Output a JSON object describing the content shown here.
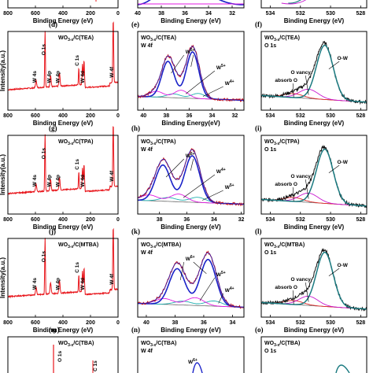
{
  "chart_data": [
    {
      "id": "c",
      "type": "line",
      "letter": "",
      "title": "",
      "sub": "",
      "ticks": [
        534,
        532,
        530,
        528
      ],
      "xlabel": "",
      "ylabel": "",
      "annotations": []
    },
    {
      "id": "d",
      "type": "line",
      "letter": "(d)",
      "title": "WO",
      "title_sub": "3-x",
      "title_rest": "/C(TEA)",
      "sub": "",
      "ticks": [
        800,
        600,
        400,
        200,
        0
      ],
      "xlabel": "Binding Energy (eV)",
      "ylabel": "Intensity(a.u.)",
      "peaks": [
        {
          "label": "O 1s",
          "x": 530
        },
        {
          "label": "W 4s",
          "x": 595
        },
        {
          "label": "W 4p",
          "x": 425
        },
        {
          "label": "W 4p",
          "x": 490
        },
        {
          "label": "C 1s",
          "x": 285
        },
        {
          "label": "W 4d",
          "x": 247
        },
        {
          "label": "W 4f",
          "x": 35
        }
      ]
    },
    {
      "id": "e",
      "type": "line",
      "letter": "(e)",
      "title": "WO",
      "title_sub": "3-x",
      "title_rest": "/C(TEA)",
      "sub": "W 4f",
      "ticks": [
        40,
        38,
        36,
        34,
        32
      ],
      "xlabel": "Binding Energy(eV)",
      "ylabel": "",
      "annotations": [
        "W",
        "6+",
        "W",
        "5+",
        "W",
        "4+"
      ]
    },
    {
      "id": "f",
      "type": "line",
      "letter": "(f)",
      "title": "WO",
      "title_sub": "3-x",
      "title_rest": "/C(TEA)",
      "sub": "O 1s",
      "ticks": [
        534,
        532,
        530,
        528
      ],
      "xlabel": "Binding Energy (eV)",
      "ylabel": "",
      "annotations": [
        "O-W",
        "O vancy",
        "absorb O"
      ]
    },
    {
      "id": "g",
      "type": "line",
      "letter": "(g)",
      "title": "WO",
      "title_sub": "3-x",
      "title_rest": "/C(TPA)",
      "sub": "",
      "ticks": [
        800,
        600,
        400,
        200,
        0
      ],
      "xlabel": "Binding Energy (eV)",
      "ylabel": "Intensity(a.u.)",
      "peaks": [
        {
          "label": "O 1s",
          "x": 530
        },
        {
          "label": "W 4s",
          "x": 595
        },
        {
          "label": "W 4p",
          "x": 425
        },
        {
          "label": "W 4p",
          "x": 490
        },
        {
          "label": "C 1s",
          "x": 285
        },
        {
          "label": "W 4d",
          "x": 247
        },
        {
          "label": "W 4f",
          "x": 35
        }
      ]
    },
    {
      "id": "h",
      "type": "line",
      "letter": "(h)",
      "title": "WO",
      "title_sub": "3-x",
      "title_rest": "/C(TPA)",
      "sub": "W 4f",
      "ticks": [
        38,
        36,
        34,
        32
      ],
      "xlabel": "Binding Energy (eV)",
      "ylabel": "",
      "annotations": [
        "W",
        "6+",
        "W",
        "4+",
        "W",
        "5+"
      ]
    },
    {
      "id": "i",
      "type": "line",
      "letter": "(i)",
      "title": "WO",
      "title_sub": "3-x",
      "title_rest": "/C(TPA)",
      "sub": "O 1s",
      "ticks": [
        534,
        532,
        530,
        528
      ],
      "xlabel": "Binding Energy (eV)",
      "ylabel": "",
      "annotations": [
        "O-W",
        "O vancy",
        "absorb O"
      ]
    },
    {
      "id": "j",
      "type": "line",
      "letter": "(j)",
      "title": "WO",
      "title_sub": "3-x",
      "title_rest": "/C(MTBA)",
      "sub": "",
      "ticks": [
        800,
        600,
        400,
        200,
        0
      ],
      "xlabel": "Binding Energy (eV)",
      "ylabel": "Intensity(a.u.)",
      "peaks": [
        {
          "label": "O 1s",
          "x": 530
        },
        {
          "label": "W 4s",
          "x": 595
        },
        {
          "label": "W 4p",
          "x": 425
        },
        {
          "label": "C 1s",
          "x": 285
        },
        {
          "label": "W 4d",
          "x": 247
        },
        {
          "label": "W 4f",
          "x": 35
        }
      ]
    },
    {
      "id": "k",
      "type": "line",
      "letter": "(k)",
      "title": "WO",
      "title_sub": "3-x",
      "title_rest": "/C(MTBA)",
      "sub": "W 4f",
      "ticks": [
        40,
        38,
        36,
        34
      ],
      "xlabel": "Binding Energy (eV)",
      "ylabel": "",
      "annotations": [
        "W",
        "6+",
        "W",
        "5+",
        "W",
        "4+"
      ]
    },
    {
      "id": "l",
      "type": "line",
      "letter": "(l)",
      "title": "WO",
      "title_sub": "3-x",
      "title_rest": "/C(MTBA)",
      "sub": "O 1s",
      "ticks": [
        534,
        532,
        530,
        528
      ],
      "xlabel": "Binding Energy (eV)",
      "ylabel": "",
      "annotations": [
        "O-W",
        "O vancy",
        "absorb O"
      ]
    },
    {
      "id": "m",
      "type": "line",
      "letter": "(m)",
      "title": "WO",
      "title_sub": "3-x",
      "title_rest": "/C(TBA)",
      "sub": "",
      "ticks": [],
      "xlabel": "",
      "ylabel": "",
      "peaks": [
        {
          "label": "O 1s",
          "x": 530
        },
        {
          "label": "C 1s",
          "x": 285
        }
      ]
    },
    {
      "id": "n",
      "type": "line",
      "letter": "(n)",
      "title": "WO",
      "title_sub": "3-x",
      "title_rest": "/C(TBA)",
      "sub": "W 4f",
      "ticks": [],
      "xlabel": "",
      "ylabel": "",
      "annotations": [
        "W",
        "6+"
      ]
    },
    {
      "id": "o",
      "type": "line",
      "letter": "(o)",
      "title": "WO",
      "title_sub": "3-x",
      "title_rest": "/C(TBA)",
      "sub": "O 1s",
      "ticks": [],
      "xlabel": "",
      "ylabel": "",
      "annotations": []
    }
  ],
  "top_row": {
    "ticks_a": [
      800,
      600,
      400,
      200,
      0
    ],
    "ticks_b": [
      40,
      38,
      36,
      34,
      32
    ],
    "ticks_c": [
      534,
      532,
      530,
      528
    ],
    "xlabel_a": "Binding Energy (eV)",
    "xlabel_b": "Binding Energy (eV)",
    "xlabel_c": "Binding Energy (eV)"
  },
  "colors": {
    "survey": "#e8141a",
    "fit_envelope": "#1a22c8",
    "raw": "#c8141a",
    "w6": "#1a22c8",
    "w5": "#e01ae0",
    "w4": "#20b0b0",
    "background": "#6a6a6a",
    "ow": "#1a7a80",
    "ovac": "#c81ad0",
    "absorb": "#e02828"
  }
}
